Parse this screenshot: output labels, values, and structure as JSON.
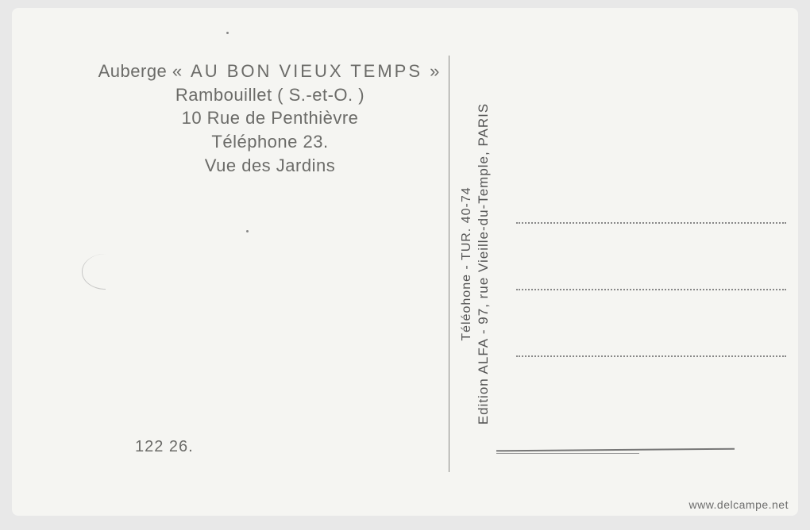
{
  "header": {
    "line1_prefix": "Auberge ",
    "line1_emph": "« AU BON VIEUX TEMPS »",
    "line2": "Rambouillet ( S.-et-O. )",
    "line3": "10 Rue de Penthièvre",
    "line4": "Téléphone 23.",
    "line5": "Vue des Jardins"
  },
  "ref_number": "122 26.",
  "publisher": {
    "line1": "Edition ALFA - 97, rue Vieille-du-Temple, PARIS",
    "line2": "Téléohone - TUR. 40-74"
  },
  "watermark": "www.delcampe.net",
  "colors": {
    "card_bg": "#f5f5f2",
    "page_bg": "#e8e8e8",
    "text": "#6b6b68",
    "divider": "#8a8a85"
  }
}
